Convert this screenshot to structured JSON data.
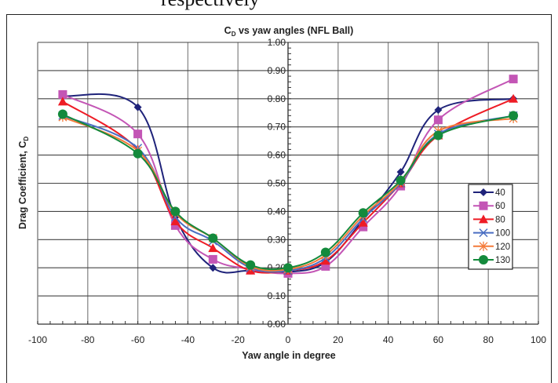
{
  "document": {
    "cut_text": "respectively"
  },
  "chart_data": {
    "type": "line",
    "title": "C",
    "title_sub": "D",
    "title_rest": " vs yaw angles (NFL Ball)",
    "xlabel": "Yaw angle in degree",
    "ylabel": "Drag Coefficient, C",
    "ylabel_sub": "D",
    "xlim": [
      -100,
      100
    ],
    "ylim": [
      0,
      1.0
    ],
    "x_ticks": [
      -100,
      -80,
      -60,
      -40,
      -20,
      0,
      20,
      40,
      60,
      80,
      100
    ],
    "y_ticks": [
      "0.00",
      "0.10",
      "0.20",
      "0.30",
      "0.40",
      "0.50",
      "0.60",
      "0.70",
      "0.80",
      "0.90",
      "1.00"
    ],
    "grid": true,
    "legend_position": "right",
    "x": [
      -90,
      -60,
      -45,
      -30,
      -15,
      0,
      15,
      30,
      45,
      60,
      90
    ],
    "series": [
      {
        "name": "40",
        "color": "#1f237a",
        "marker": "diamond",
        "values": [
          0.81,
          0.77,
          0.38,
          0.2,
          0.19,
          0.185,
          0.22,
          0.37,
          0.54,
          0.76,
          0.8
        ]
      },
      {
        "name": "60",
        "color": "#c355b5",
        "marker": "square",
        "values": [
          0.815,
          0.675,
          0.35,
          0.23,
          0.195,
          0.18,
          0.205,
          0.345,
          0.49,
          0.725,
          0.87
        ]
      },
      {
        "name": "80",
        "color": "#ee1c25",
        "marker": "triangle",
        "values": [
          0.79,
          0.62,
          0.365,
          0.27,
          0.19,
          0.19,
          0.225,
          0.36,
          0.5,
          0.67,
          0.8
        ]
      },
      {
        "name": "100",
        "color": "#4a6ec2",
        "marker": "x",
        "values": [
          0.74,
          0.625,
          0.38,
          0.295,
          0.2,
          0.19,
          0.235,
          0.375,
          0.5,
          0.675,
          0.74
        ]
      },
      {
        "name": "120",
        "color": "#f47a3a",
        "marker": "star",
        "values": [
          0.735,
          0.615,
          0.395,
          0.305,
          0.205,
          0.195,
          0.245,
          0.385,
          0.505,
          0.685,
          0.73
        ]
      },
      {
        "name": "130",
        "color": "#148a3c",
        "marker": "circle",
        "values": [
          0.745,
          0.605,
          0.4,
          0.305,
          0.21,
          0.2,
          0.255,
          0.395,
          0.51,
          0.67,
          0.74
        ]
      }
    ]
  }
}
